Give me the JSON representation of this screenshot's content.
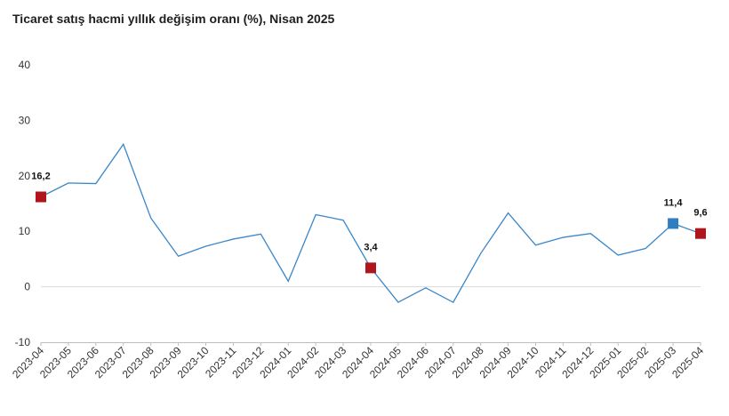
{
  "chart_data": {
    "type": "line",
    "title": "Ticaret satış hacmi yıllık değişim oranı (%), Nisan 2025",
    "xlabel": "",
    "ylabel": "",
    "ylim": [
      -10,
      40
    ],
    "yticks": [
      -10,
      0,
      10,
      20,
      30,
      40
    ],
    "grid": "zero-line only",
    "legend": "none",
    "line_color": "#3a86c8",
    "categories": [
      "2023-04",
      "2023-05",
      "2023-06",
      "2023-07",
      "2023-08",
      "2023-09",
      "2023-10",
      "2023-11",
      "2023-12",
      "2024-01",
      "2024-02",
      "2024-03",
      "2024-04",
      "2024-05",
      "2024-06",
      "2024-07",
      "2024-08",
      "2024-09",
      "2024-10",
      "2024-11",
      "2024-12",
      "2025-01",
      "2025-02",
      "2025-03",
      "2025-04"
    ],
    "series": [
      {
        "values": [
          16.2,
          18.7,
          18.6,
          25.7,
          12.4,
          5.5,
          7.3,
          8.6,
          9.5,
          1.0,
          13.0,
          12.0,
          3.4,
          -2.8,
          -0.2,
          -2.8,
          6.0,
          13.3,
          7.5,
          8.9,
          9.6,
          5.7,
          6.9,
          11.4,
          9.6
        ]
      }
    ],
    "highlighted_points": [
      {
        "category": "2023-04",
        "label": "16,2",
        "color": "#b0151d"
      },
      {
        "category": "2024-04",
        "label": "3,4",
        "color": "#b0151d"
      },
      {
        "category": "2025-03",
        "label": "11,4",
        "color": "#2f7ec1"
      },
      {
        "category": "2025-04",
        "label": "9,6",
        "color": "#b0151d"
      }
    ]
  }
}
